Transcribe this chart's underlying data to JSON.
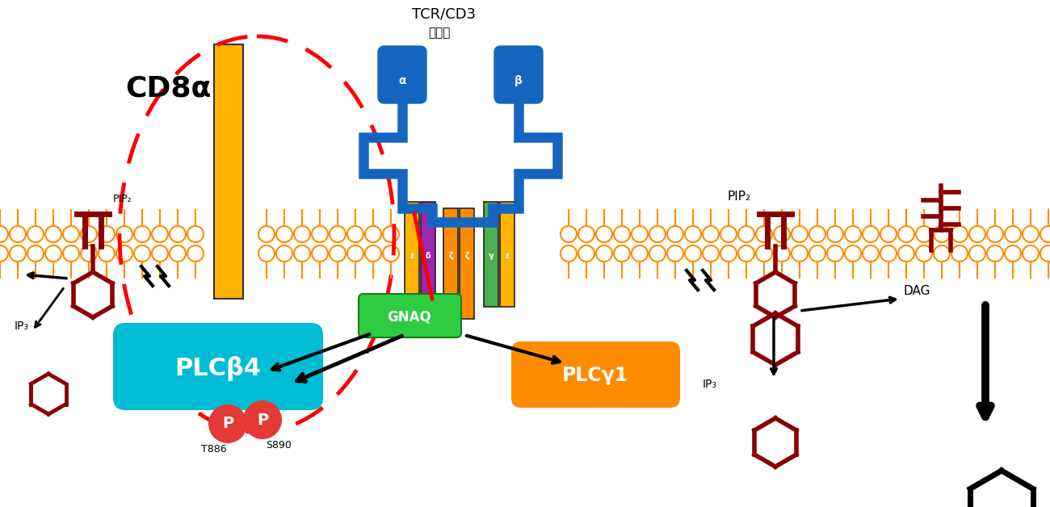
{
  "bg_color": "#ffffff",
  "membrane_color": "#FF8C00",
  "cd8a_label": "CD8α",
  "cd8a_color": "#FFB300",
  "tcr_label": "TCR/CD3",
  "tcr_sublabel": "複合体",
  "tcr_color": "#1565C0",
  "gnaq_label": "GNAQ",
  "gnaq_color": "#2ECC40",
  "plcb4_label": "PLCβ4",
  "plcb4_color": "#00BCD4",
  "plcy1_label": "PLCγ1",
  "plcy1_color": "#FF8C00",
  "mol_color": "#8B0000",
  "p_color": "#E53935",
  "dashed_red": "#FF0000"
}
